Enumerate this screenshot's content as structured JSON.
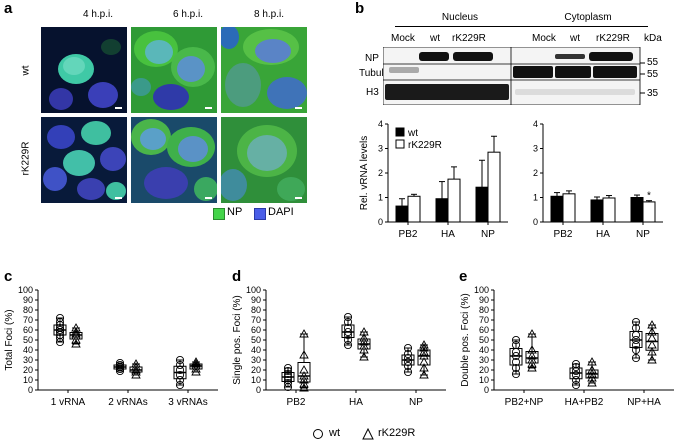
{
  "panel_labels": [
    "a",
    "b",
    "c",
    "d",
    "e"
  ],
  "panel_a": {
    "columns": [
      "4 h.p.i.",
      "6 h.p.i.",
      "8 h.p.i."
    ],
    "rows": [
      "wt",
      "rK229R"
    ],
    "legend": [
      {
        "label": "NP",
        "color": "#44d44a"
      },
      {
        "label": "DAPI",
        "color": "#4a5ee8"
      }
    ]
  },
  "panel_b_blot": {
    "groups": [
      "Nucleus",
      "Cytoplasm"
    ],
    "lanes": [
      "Mock",
      "wt",
      "rK229R",
      "Mock",
      "wt",
      "rK229R"
    ],
    "kda_label": "kDa",
    "rows": [
      {
        "label": "NP",
        "marker": "55"
      },
      {
        "label": "Tubulin",
        "marker": "55"
      },
      {
        "label": "H3",
        "marker": "35"
      }
    ]
  },
  "legend_series": [
    "wt",
    "rK229R"
  ],
  "chart_data": [
    {
      "type": "bar",
      "ylabel": "Rel. vRNA levels",
      "categories": [
        "PB2",
        "HA",
        "NP"
      ],
      "ylim": [
        0,
        4
      ],
      "yticks": [
        0,
        1,
        2,
        3,
        4
      ],
      "series": [
        {
          "name": "wt",
          "values": [
            0.65,
            0.95,
            1.42
          ],
          "errors": [
            0.3,
            0.7,
            1.1
          ]
        },
        {
          "name": "rK229R",
          "values": [
            1.05,
            1.75,
            2.85
          ],
          "errors": [
            0.08,
            0.5,
            0.65
          ]
        }
      ]
    },
    {
      "type": "bar",
      "ylabel": "",
      "categories": [
        "PB2",
        "HA",
        "NP"
      ],
      "ylim": [
        0,
        4
      ],
      "yticks": [
        0,
        1,
        2,
        3,
        4
      ],
      "annotation": "*",
      "series": [
        {
          "name": "wt",
          "values": [
            1.05,
            0.9,
            1.0
          ],
          "errors": [
            0.15,
            0.12,
            0.1
          ]
        },
        {
          "name": "rK229R",
          "values": [
            1.15,
            0.98,
            0.82
          ],
          "errors": [
            0.12,
            0.1,
            0.05
          ]
        }
      ]
    },
    {
      "type": "box",
      "ylabel": "Total Foci (%)",
      "categories": [
        "1 vRNA",
        "2 vRNAs",
        "3 vRNAs"
      ],
      "ylim": [
        0,
        100
      ],
      "yticks": [
        0,
        10,
        20,
        30,
        40,
        50,
        60,
        70,
        80,
        90,
        100
      ],
      "series": [
        {
          "name": "wt",
          "points": [
            [
              48,
              52,
              55,
              58,
              60,
              62,
              65,
              68,
              72
            ],
            [
              19,
              21,
              23,
              25,
              27
            ],
            [
              5,
              10,
              15,
              20,
              25,
              30
            ]
          ]
        },
        {
          "name": "rK229R",
          "points": [
            [
              46,
              50,
              54,
              56,
              58,
              62
            ],
            [
              15,
              18,
              20,
              23,
              26
            ],
            [
              18,
              21,
              24,
              26,
              28
            ]
          ]
        }
      ]
    },
    {
      "type": "box",
      "ylabel": "Single pos. Foci (%)",
      "categories": [
        "PB2",
        "HA",
        "NP"
      ],
      "ylim": [
        0,
        100
      ],
      "yticks": [
        0,
        10,
        20,
        30,
        40,
        50,
        60,
        70,
        80,
        90,
        100
      ],
      "series": [
        {
          "name": "wt",
          "points": [
            [
              3,
              7,
              10,
              13,
              16,
              19,
              22
            ],
            [
              45,
              50,
              55,
              58,
              62,
              68,
              73
            ],
            [
              18,
              24,
              28,
              32,
              36,
              42
            ]
          ]
        },
        {
          "name": "rK229R",
          "points": [
            [
              2,
              6,
              10,
              14,
              20,
              35,
              56
            ],
            [
              33,
              40,
              44,
              48,
              52,
              58
            ],
            [
              15,
              22,
              28,
              34,
              38,
              42,
              45
            ]
          ]
        }
      ]
    },
    {
      "type": "box",
      "ylabel": "Double pos. Foci (%)",
      "categories": [
        "PB2+NP",
        "HA+PB2",
        "NP+HA"
      ],
      "ylim": [
        0,
        100
      ],
      "yticks": [
        0,
        10,
        20,
        30,
        40,
        50,
        60,
        70,
        80,
        90,
        100
      ],
      "series": [
        {
          "name": "wt",
          "points": [
            [
              16,
              22,
              28,
              34,
              38,
              45,
              50
            ],
            [
              5,
              10,
              15,
              19,
              23,
              26
            ],
            [
              32,
              40,
              45,
              50,
              55,
              62,
              68
            ]
          ]
        },
        {
          "name": "rK229R",
          "points": [
            [
              22,
              26,
              30,
              34,
              40,
              56
            ],
            [
              7,
              12,
              16,
              20,
              28
            ],
            [
              30,
              38,
              45,
              52,
              58,
              65
            ]
          ]
        }
      ]
    }
  ]
}
